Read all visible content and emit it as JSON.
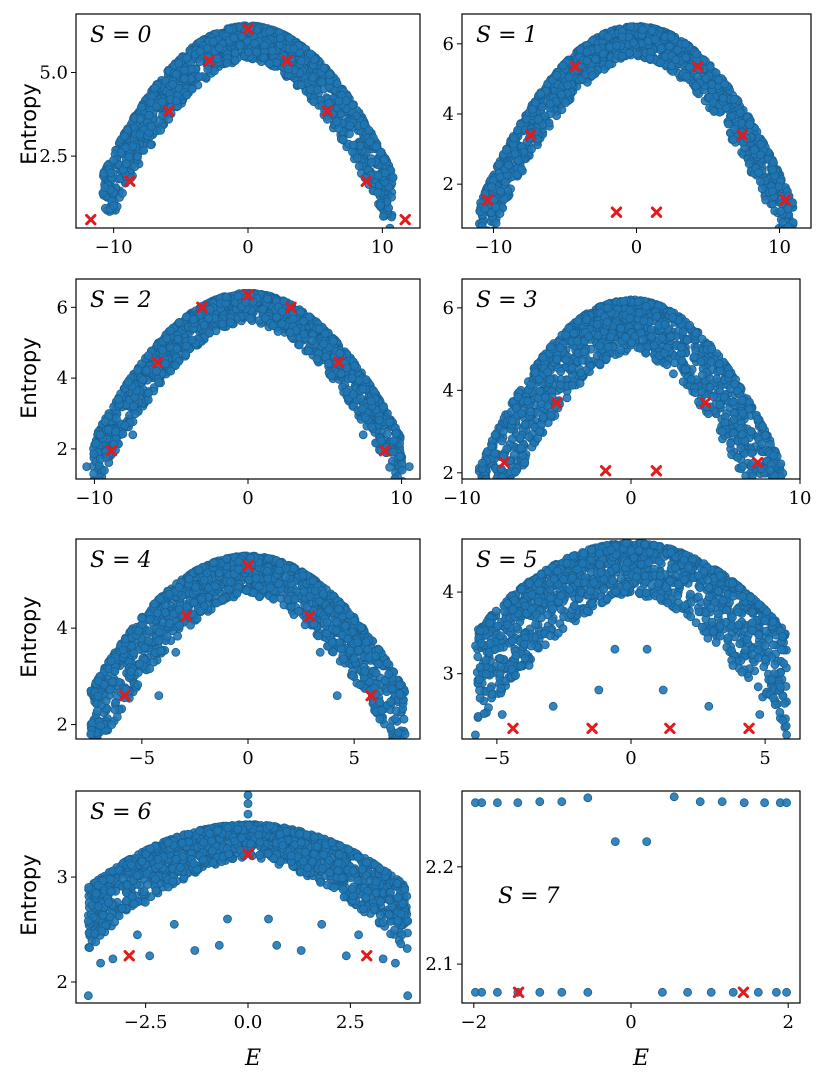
{
  "figure": {
    "ylabel": "Entropy",
    "xlabel": "E"
  },
  "colors": {
    "points": "#1f77b4",
    "points_edge": "#1a5f90",
    "special_marker": "#e41a1c"
  },
  "chart_data": [
    {
      "type": "scatter",
      "panel_label": "S = 0",
      "xlabel": "",
      "ylabel": "Entropy",
      "xlim": [
        -12.8,
        12.8
      ],
      "ylim": [
        0.35,
        6.75
      ],
      "xticks": [
        -10,
        0,
        10
      ],
      "xtick_labels": [
        "−10",
        "0",
        "10"
      ],
      "yticks": [
        2.5,
        5.0
      ],
      "ytick_labels": [
        "2.5",
        "5.0"
      ],
      "envelope": {
        "xmax": 10.8,
        "ymax": 6.4,
        "ymin_edge": 1.95,
        "thickness": 1.6
      },
      "outliers": [
        [
          -8.7,
          1.85
        ],
        [
          -5.9,
          3.6
        ],
        [
          -3.0,
          5.1
        ],
        [
          3.0,
          5.1
        ],
        [
          5.9,
          3.6
        ],
        [
          8.7,
          1.85
        ],
        [
          -10.2,
          2.0
        ],
        [
          10.2,
          2.0
        ]
      ],
      "special_points": [
        [
          -11.7,
          0.6
        ],
        [
          -8.8,
          1.75
        ],
        [
          -5.9,
          3.85
        ],
        [
          -2.9,
          5.35
        ],
        [
          0.0,
          6.3
        ],
        [
          2.9,
          5.35
        ],
        [
          5.9,
          3.85
        ],
        [
          8.8,
          1.75
        ],
        [
          11.7,
          0.6
        ]
      ]
    },
    {
      "type": "scatter",
      "panel_label": "S = 1",
      "xlabel": "",
      "ylabel": "",
      "xlim": [
        -12.2,
        12.2
      ],
      "ylim": [
        0.75,
        6.85
      ],
      "xticks": [
        -10,
        0,
        10
      ],
      "xtick_labels": [
        "−10",
        "0",
        "10"
      ],
      "yticks": [
        2,
        4,
        6
      ],
      "ytick_labels": [
        "2",
        "4",
        "6"
      ],
      "envelope": {
        "xmax": 11.0,
        "ymax": 6.5,
        "ymin_edge": 1.4,
        "thickness": 1.4
      },
      "outliers": [
        [
          -10.6,
          1.3
        ],
        [
          10.6,
          1.3
        ],
        [
          -9.5,
          1.8
        ],
        [
          9.5,
          1.8
        ]
      ],
      "special_points": [
        [
          -10.4,
          1.55
        ],
        [
          -7.4,
          3.4
        ],
        [
          -4.3,
          5.35
        ],
        [
          -1.4,
          1.2
        ],
        [
          1.4,
          1.2
        ],
        [
          4.3,
          5.35
        ],
        [
          7.4,
          3.4
        ],
        [
          10.4,
          1.55
        ]
      ]
    },
    {
      "type": "scatter",
      "panel_label": "S = 2",
      "xlabel": "",
      "ylabel": "Entropy",
      "xlim": [
        -11.2,
        11.2
      ],
      "ylim": [
        1.15,
        6.8
      ],
      "xticks": [
        -10,
        0,
        10
      ],
      "xtick_labels": [
        "−10",
        "0",
        "10"
      ],
      "yticks": [
        2,
        4,
        6
      ],
      "ytick_labels": [
        "2",
        "4",
        "6"
      ],
      "envelope": {
        "xmax": 10.1,
        "ymax": 6.4,
        "ymin_edge": 2.2,
        "thickness": 1.3
      },
      "outliers": [
        [
          -10.5,
          1.5
        ],
        [
          10.5,
          1.5
        ],
        [
          -7.5,
          2.4
        ],
        [
          7.5,
          2.4
        ]
      ],
      "special_points": [
        [
          -8.9,
          1.95
        ],
        [
          -5.9,
          4.45
        ],
        [
          -3.0,
          6.0
        ],
        [
          0.0,
          6.35
        ],
        [
          2.8,
          6.0
        ],
        [
          5.9,
          4.45
        ],
        [
          8.9,
          1.95
        ]
      ]
    },
    {
      "type": "scatter",
      "panel_label": "S = 3",
      "xlabel": "",
      "ylabel": "",
      "xlim": [
        -10.0,
        10.0
      ],
      "ylim": [
        1.85,
        6.7
      ],
      "xticks": [
        -10,
        0,
        10
      ],
      "xtick_labels": [
        "−10",
        "0",
        "10"
      ],
      "yticks": [
        2,
        4,
        6
      ],
      "ytick_labels": [
        "2",
        "4",
        "6"
      ],
      "envelope": {
        "xmax": 9.0,
        "ymax": 6.2,
        "ymin_edge": 2.1,
        "thickness": 2.0
      },
      "outliers": [
        [
          -6.5,
          2.6
        ],
        [
          -5.4,
          3.0
        ],
        [
          -4.5,
          3.6
        ],
        [
          -2.0,
          5.6
        ],
        [
          -1.2,
          5.3
        ],
        [
          1.2,
          5.3
        ],
        [
          2.0,
          5.6
        ],
        [
          4.5,
          3.6
        ],
        [
          5.4,
          3.0
        ],
        [
          6.5,
          2.6
        ],
        [
          -7.7,
          2.1
        ],
        [
          7.7,
          2.1
        ]
      ],
      "special_points": [
        [
          -7.5,
          2.25
        ],
        [
          -4.4,
          3.7
        ],
        [
          -1.5,
          2.05
        ],
        [
          1.5,
          2.05
        ],
        [
          4.4,
          3.7
        ],
        [
          7.5,
          2.25
        ]
      ]
    },
    {
      "type": "scatter",
      "panel_label": "S = 4",
      "xlabel": "",
      "ylabel": "Entropy",
      "xlim": [
        -8.1,
        8.1
      ],
      "ylim": [
        1.7,
        5.85
      ],
      "xticks": [
        -5,
        0,
        5
      ],
      "xtick_labels": [
        "−5",
        "0",
        "5"
      ],
      "yticks": [
        2,
        4
      ],
      "ytick_labels": [
        "2",
        "4"
      ],
      "envelope": {
        "xmax": 7.4,
        "ymax": 5.5,
        "ymin_edge": 2.7,
        "thickness": 1.3
      },
      "outliers": [
        [
          -7.4,
          1.8
        ],
        [
          7.4,
          1.8
        ],
        [
          -4.2,
          2.6
        ],
        [
          4.2,
          2.6
        ],
        [
          -5.5,
          3.1
        ],
        [
          5.5,
          3.1
        ],
        [
          -3.4,
          3.5
        ],
        [
          3.4,
          3.5
        ],
        [
          -2.2,
          4.6
        ],
        [
          2.2,
          4.6
        ],
        [
          -1.2,
          4.6
        ],
        [
          1.2,
          4.6
        ]
      ],
      "special_points": [
        [
          -5.8,
          2.6
        ],
        [
          -2.9,
          4.25
        ],
        [
          0.0,
          5.3
        ],
        [
          2.9,
          4.25
        ],
        [
          5.8,
          2.6
        ]
      ]
    },
    {
      "type": "scatter",
      "panel_label": "S = 5",
      "xlabel": "",
      "ylabel": "",
      "xlim": [
        -6.3,
        6.3
      ],
      "ylim": [
        2.2,
        4.65
      ],
      "xticks": [
        -5,
        0,
        5
      ],
      "xtick_labels": [
        "−5",
        "0",
        "5"
      ],
      "yticks": [
        3,
        4
      ],
      "ytick_labels": [
        "3",
        "4"
      ],
      "envelope": {
        "xmax": 5.8,
        "ymax": 4.6,
        "ymin_edge": 3.5,
        "thickness": 1.0
      },
      "outliers": [
        [
          -5.8,
          2.25
        ],
        [
          5.8,
          2.25
        ],
        [
          -2.9,
          2.6
        ],
        [
          2.9,
          2.6
        ],
        [
          -1.2,
          2.8
        ],
        [
          1.2,
          2.8
        ],
        [
          -4.8,
          2.5
        ],
        [
          4.8,
          2.5
        ],
        [
          -3.8,
          3.1
        ],
        [
          3.8,
          3.1
        ],
        [
          -0.6,
          3.3
        ],
        [
          0.6,
          3.3
        ]
      ],
      "special_points": [
        [
          -4.4,
          2.33
        ],
        [
          -1.45,
          2.33
        ],
        [
          1.45,
          2.33
        ],
        [
          4.4,
          2.33
        ]
      ]
    },
    {
      "type": "scatter",
      "panel_label": "S = 6",
      "xlabel": "E",
      "ylabel": "Entropy",
      "xlim": [
        -4.2,
        4.2
      ],
      "ylim": [
        1.8,
        3.82
      ],
      "xticks": [
        -2.5,
        0.0,
        2.5
      ],
      "xtick_labels": [
        "−2.5",
        "0.0",
        "2.5"
      ],
      "yticks": [
        2,
        3
      ],
      "ytick_labels": [
        "2",
        "3"
      ],
      "envelope": {
        "xmax": 3.9,
        "ymax": 3.5,
        "ymin_edge": 2.9,
        "thickness": 0.5
      },
      "outliers": [
        [
          0.0,
          3.78
        ],
        [
          0.0,
          3.7
        ],
        [
          0.0,
          3.6
        ],
        [
          -3.9,
          1.87
        ],
        [
          3.9,
          1.87
        ],
        [
          -3.6,
          2.18
        ],
        [
          3.6,
          2.18
        ],
        [
          -3.3,
          2.22
        ],
        [
          3.3,
          2.22
        ],
        [
          -2.4,
          2.25
        ],
        [
          2.4,
          2.25
        ],
        [
          -1.3,
          2.3
        ],
        [
          1.3,
          2.3
        ],
        [
          -0.7,
          2.35
        ],
        [
          0.7,
          2.35
        ],
        [
          -2.7,
          2.45
        ],
        [
          2.7,
          2.45
        ],
        [
          -3.9,
          2.58
        ],
        [
          3.9,
          2.58
        ],
        [
          -1.8,
          2.55
        ],
        [
          1.8,
          2.55
        ],
        [
          -0.5,
          2.6
        ],
        [
          0.5,
          2.6
        ]
      ],
      "special_points": [
        [
          -2.9,
          2.25
        ],
        [
          0.0,
          3.22
        ],
        [
          2.9,
          2.25
        ]
      ]
    },
    {
      "type": "scatter",
      "panel_label": "S = 7",
      "xlabel": "E",
      "ylabel": "",
      "xlim": [
        -2.15,
        2.15
      ],
      "ylim": [
        2.06,
        2.278
      ],
      "xticks": [
        -2,
        0,
        2
      ],
      "xtick_labels": [
        "−2",
        "0",
        "2"
      ],
      "yticks": [
        2.1,
        2.2
      ],
      "ytick_labels": [
        "2.1",
        "2.2"
      ],
      "points": [
        [
          -1.98,
          2.266
        ],
        [
          -1.9,
          2.266
        ],
        [
          -1.7,
          2.266
        ],
        [
          -1.44,
          2.266
        ],
        [
          -1.16,
          2.267
        ],
        [
          -0.88,
          2.267
        ],
        [
          -0.55,
          2.271
        ],
        [
          -0.2,
          2.226
        ],
        [
          0.2,
          2.226
        ],
        [
          0.55,
          2.272
        ],
        [
          0.88,
          2.267
        ],
        [
          1.16,
          2.267
        ],
        [
          1.44,
          2.266
        ],
        [
          1.7,
          2.266
        ],
        [
          1.9,
          2.266
        ],
        [
          1.98,
          2.266
        ],
        [
          -1.98,
          2.071
        ],
        [
          -1.9,
          2.071
        ],
        [
          -1.7,
          2.071
        ],
        [
          -1.44,
          2.071
        ],
        [
          -1.16,
          2.071
        ],
        [
          -0.88,
          2.071
        ],
        [
          -0.55,
          2.071
        ],
        [
          0.4,
          2.071
        ],
        [
          0.72,
          2.071
        ],
        [
          1.02,
          2.071
        ],
        [
          1.3,
          2.071
        ],
        [
          1.62,
          2.071
        ],
        [
          1.85,
          2.071
        ],
        [
          1.98,
          2.071
        ]
      ],
      "special_points": [
        [
          -1.43,
          2.071
        ],
        [
          1.43,
          2.071
        ]
      ]
    }
  ]
}
